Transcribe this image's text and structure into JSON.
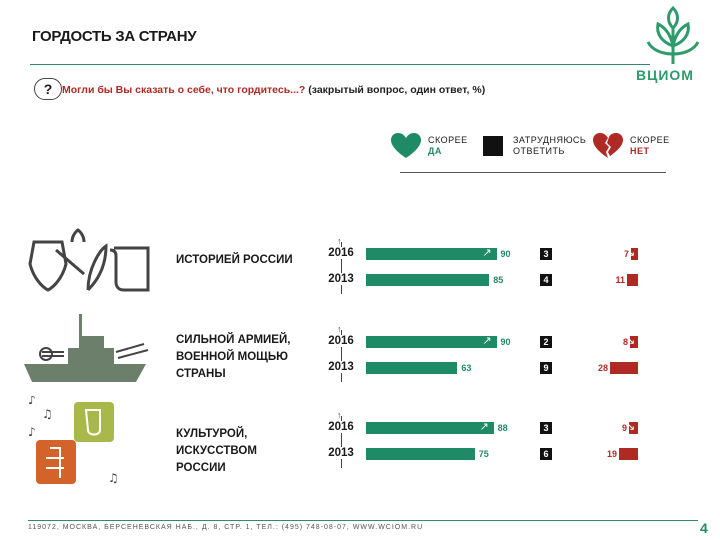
{
  "header": {
    "title": "ГОРДОСТЬ ЗА СТРАНУ",
    "logo_text": "ВЦИОМ"
  },
  "question": {
    "icon": "question-mark-icon",
    "main": "Могли бы Вы сказать о себе, что гордитесь...?",
    "note": " (закрытый вопрос, один ответ, %)"
  },
  "legend": [
    {
      "icon": "heart-icon",
      "line1": "СКОРЕЕ",
      "line2": "ДА"
    },
    {
      "icon": "black-square-icon",
      "line1": "ЗАТРУДНЯЮСЬ",
      "line2": "ОТВЕТИТЬ"
    },
    {
      "icon": "broken-heart-icon",
      "line1": "СКОРЕЕ",
      "line2": "НЕТ"
    }
  ],
  "colors": {
    "green": "#1f8a66",
    "red": "#b02a25",
    "black": "#111111"
  },
  "chart_data": {
    "type": "bar",
    "orientation": "horizontal",
    "groups": [
      {
        "label": "ИСТОРИЕЙ РОССИИ",
        "rows": [
          {
            "year": "2016",
            "yes": 90,
            "hard": 3,
            "no": 7
          },
          {
            "year": "2013",
            "yes": 85,
            "hard": 4,
            "no": 11
          }
        ]
      },
      {
        "label": "СИЛЬНОЙ АРМИЕЙ, ВОЕННОЙ МОЩЬЮ СТРАНЫ",
        "rows": [
          {
            "year": "2016",
            "yes": 90,
            "hard": 2,
            "no": 8
          },
          {
            "year": "2013",
            "yes": 63,
            "hard": 9,
            "no": 28
          }
        ]
      },
      {
        "label": "КУЛЬТУРОЙ, ИСКУССТВОМ РОССИИ",
        "rows": [
          {
            "year": "2016",
            "yes": 88,
            "hard": 3,
            "no": 9
          },
          {
            "year": "2013",
            "yes": 75,
            "hard": 6,
            "no": 19
          }
        ]
      }
    ]
  },
  "footer": {
    "address": "119072, МОСКВА, БЕРСЕНЕВСКАЯ НАБ., Д. 8, СТР. 1, ТЕЛ.: (495) 748-08-07, WWW.WCIOM.RU",
    "page": "4"
  }
}
